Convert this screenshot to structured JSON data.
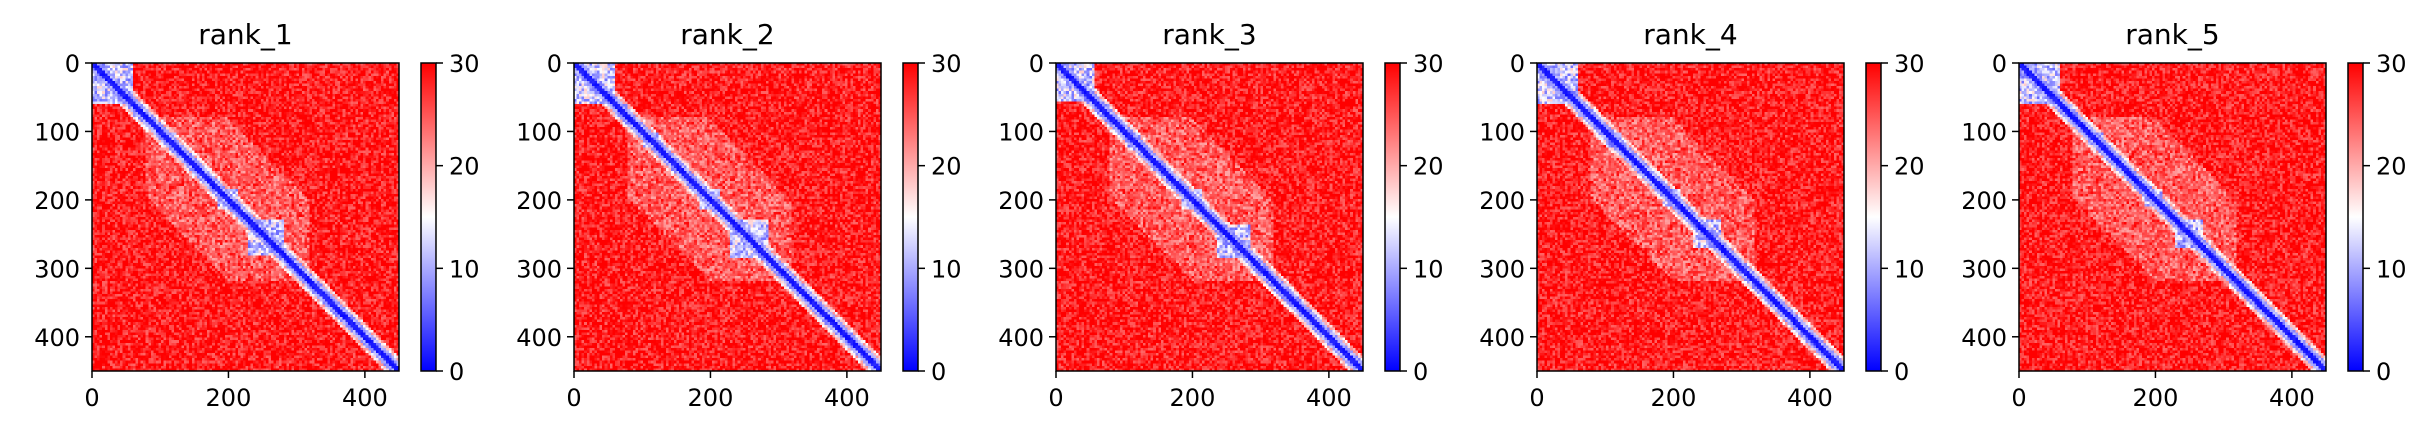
{
  "chart_data": [
    {
      "type": "heatmap",
      "title": "rank_1",
      "xlim": [
        0,
        450
      ],
      "ylim": [
        450,
        0
      ],
      "xticks": [
        0,
        200,
        400
      ],
      "yticks": [
        0,
        100,
        200,
        300,
        400
      ],
      "colorbar": {
        "min": 0,
        "max": 30,
        "ticks": [
          0,
          10,
          20,
          30
        ]
      },
      "colormap": [
        "#0000ff",
        "#ffffff",
        "#ff0000"
      ],
      "blue_domains": [
        [
          0,
          60
        ],
        [
          60,
          80
        ],
        [
          100,
          125
        ],
        [
          185,
          215
        ],
        [
          230,
          280
        ]
      ]
    },
    {
      "type": "heatmap",
      "title": "rank_2",
      "xlim": [
        0,
        450
      ],
      "ylim": [
        450,
        0
      ],
      "xticks": [
        0,
        200,
        400
      ],
      "yticks": [
        0,
        100,
        200,
        300,
        400
      ],
      "colorbar": {
        "min": 0,
        "max": 30,
        "ticks": [
          0,
          10,
          20,
          30
        ]
      },
      "colormap": [
        "#0000ff",
        "#ffffff",
        "#ff0000"
      ],
      "blue_domains": [
        [
          0,
          60
        ],
        [
          60,
          80
        ],
        [
          100,
          125
        ],
        [
          185,
          215
        ],
        [
          230,
          285
        ]
      ]
    },
    {
      "type": "heatmap",
      "title": "rank_3",
      "xlim": [
        0,
        450
      ],
      "ylim": [
        450,
        0
      ],
      "xticks": [
        0,
        200,
        400
      ],
      "yticks": [
        0,
        100,
        200,
        300,
        400
      ],
      "colorbar": {
        "min": 0,
        "max": 30,
        "ticks": [
          0,
          10,
          20,
          30
        ]
      },
      "colormap": [
        "#0000ff",
        "#ffffff",
        "#ff0000"
      ],
      "blue_domains": [
        [
          0,
          55
        ],
        [
          60,
          80
        ],
        [
          100,
          125
        ],
        [
          185,
          215
        ],
        [
          235,
          285
        ]
      ]
    },
    {
      "type": "heatmap",
      "title": "rank_4",
      "xlim": [
        0,
        450
      ],
      "ylim": [
        450,
        0
      ],
      "xticks": [
        0,
        200,
        400
      ],
      "yticks": [
        0,
        100,
        200,
        300,
        400
      ],
      "colorbar": {
        "min": 0,
        "max": 30,
        "ticks": [
          0,
          10,
          20,
          30
        ]
      },
      "colormap": [
        "#0000ff",
        "#ffffff",
        "#ff0000"
      ],
      "blue_domains": [
        [
          0,
          60
        ],
        [
          60,
          80
        ],
        [
          100,
          125
        ],
        [
          185,
          210
        ],
        [
          230,
          270
        ]
      ]
    },
    {
      "type": "heatmap",
      "title": "rank_5",
      "xlim": [
        0,
        450
      ],
      "ylim": [
        450,
        0
      ],
      "xticks": [
        0,
        200,
        400
      ],
      "yticks": [
        0,
        100,
        200,
        300,
        400
      ],
      "colorbar": {
        "min": 0,
        "max": 30,
        "ticks": [
          0,
          10,
          20,
          30
        ]
      },
      "colormap": [
        "#0000ff",
        "#ffffff",
        "#ff0000"
      ],
      "blue_domains": [
        [
          0,
          60
        ],
        [
          60,
          80
        ],
        [
          100,
          125
        ],
        [
          185,
          210
        ],
        [
          230,
          270
        ]
      ]
    }
  ]
}
